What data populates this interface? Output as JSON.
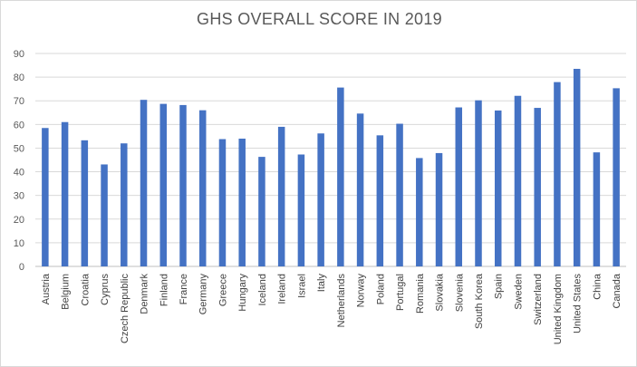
{
  "chart_data": {
    "type": "bar",
    "title": "GHS OVERALL SCORE IN 2019",
    "xlabel": "",
    "ylabel": "",
    "ylim": [
      0,
      90
    ],
    "yticks": [
      0,
      10,
      20,
      30,
      40,
      50,
      60,
      70,
      80,
      90
    ],
    "grid": true,
    "legend": "none",
    "bar_color": "#4472C4",
    "categories": [
      "Austria",
      "Belgium",
      "Croatia",
      "Cyprus",
      "Czech Republic",
      "Denmark",
      "Finland",
      "France",
      "Germany",
      "Greece",
      "Hungary",
      "Iceland",
      "Ireland",
      "Israel",
      "Italy",
      "Netherlands",
      "Norway",
      "Poland",
      "Portugal",
      "Romania",
      "Slovakia",
      "Slovenia",
      "South Korea",
      "Spain",
      "Sweden",
      "Switzerland",
      "United Kingdom",
      "United States",
      "China",
      "Canada"
    ],
    "values": [
      58.5,
      61.0,
      53.3,
      43.1,
      52.0,
      70.4,
      68.7,
      68.2,
      66.0,
      53.8,
      54.0,
      46.3,
      59.0,
      47.3,
      56.2,
      75.6,
      64.6,
      55.4,
      60.3,
      45.8,
      47.9,
      67.2,
      70.2,
      65.9,
      72.1,
      67.0,
      77.9,
      83.5,
      48.2,
      75.3
    ]
  }
}
